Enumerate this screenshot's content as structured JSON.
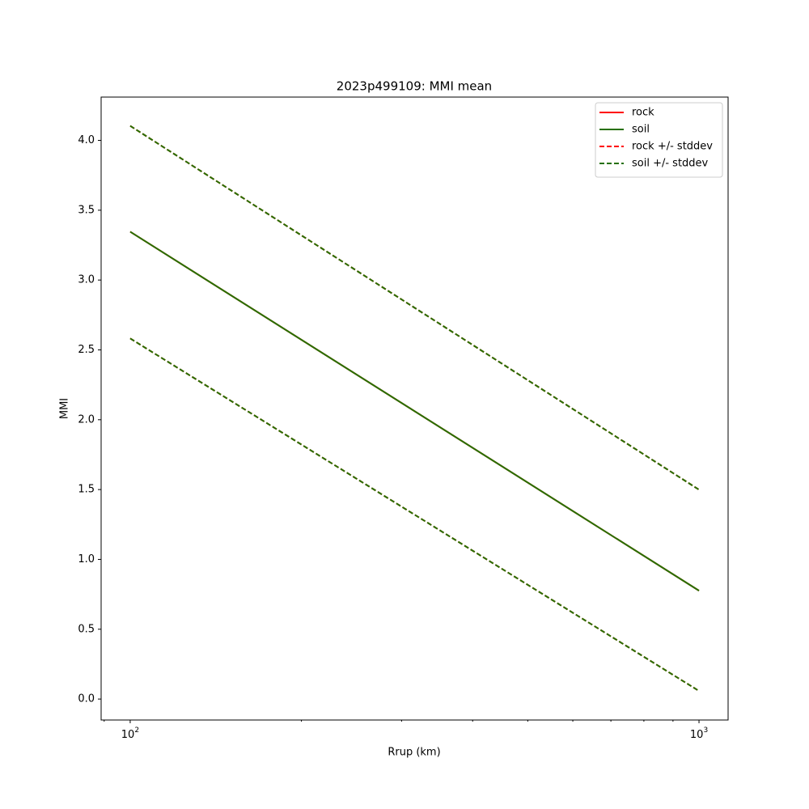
{
  "chart_data": {
    "type": "line",
    "title": "2023p499109: MMI mean",
    "x_label": "Rrup (km)",
    "y_label": "MMI",
    "x_scale": "log",
    "x": [
      100,
      1000
    ],
    "series": [
      {
        "name": "rock",
        "color": "#ff0000",
        "style": "solid",
        "values": [
          3.346,
          0.776
        ]
      },
      {
        "name": "soil",
        "color": "#267000",
        "style": "solid",
        "values": [
          3.346,
          0.776
        ]
      },
      {
        "name": "rock +/- stddev",
        "color": "#ff0000",
        "style": "dashed",
        "upper": [
          4.104,
          1.499
        ],
        "lower": [
          2.582,
          0.058
        ]
      },
      {
        "name": "soil +/- stddev",
        "color": "#267000",
        "style": "dashed",
        "upper": [
          4.104,
          1.499
        ],
        "lower": [
          2.582,
          0.058
        ]
      }
    ],
    "xlim": [
      88.9,
      1125
    ],
    "ylim": [
      -0.15,
      4.31
    ],
    "xticks": [
      {
        "value": 100,
        "label": "10",
        "exponent": "2"
      },
      {
        "value": 1000,
        "label": "10",
        "exponent": "3"
      }
    ],
    "xminorticks": [
      90,
      200,
      300,
      400,
      500,
      600,
      700,
      800,
      900
    ],
    "yticks": [
      {
        "value": 0,
        "label": "0.0"
      },
      {
        "value": 0.5,
        "label": "0.5"
      },
      {
        "value": 1,
        "label": "1.0"
      },
      {
        "value": 1.5,
        "label": "1.5"
      },
      {
        "value": 2,
        "label": "2.0"
      },
      {
        "value": 2.5,
        "label": "2.5"
      },
      {
        "value": 3,
        "label": "3.0"
      },
      {
        "value": 3.5,
        "label": "3.5"
      },
      {
        "value": 4,
        "label": "4.0"
      }
    ],
    "legend": "upper right",
    "grid": false
  }
}
